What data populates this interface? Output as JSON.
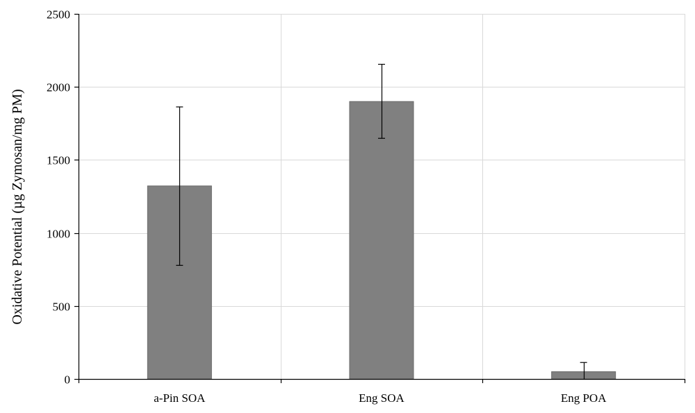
{
  "chart_data": {
    "type": "bar",
    "title": "",
    "xlabel": "",
    "ylabel": "Oxidative Potential (µg Zymosan/mg PM)",
    "categories": [
      "a-Pin SOA",
      "Eng SOA",
      "Eng POA"
    ],
    "values": [
      1322,
      1900,
      50
    ],
    "error_low": [
      778,
      1648,
      0
    ],
    "error_high": [
      1863,
      2155,
      113
    ],
    "ylim": [
      0,
      2500
    ],
    "yticks": [
      0,
      500,
      1000,
      1500,
      2000,
      2500
    ],
    "ytick_labels": [
      "0",
      "500",
      "1000",
      "1500",
      "2000",
      "2500"
    ],
    "grid": true,
    "legend": "none"
  },
  "colors": {
    "bar_fill": "#808080",
    "bar_stroke": "#6a6a6a",
    "grid": "#d9d9d9",
    "axis": "#000000",
    "error_bar": "#000000"
  }
}
